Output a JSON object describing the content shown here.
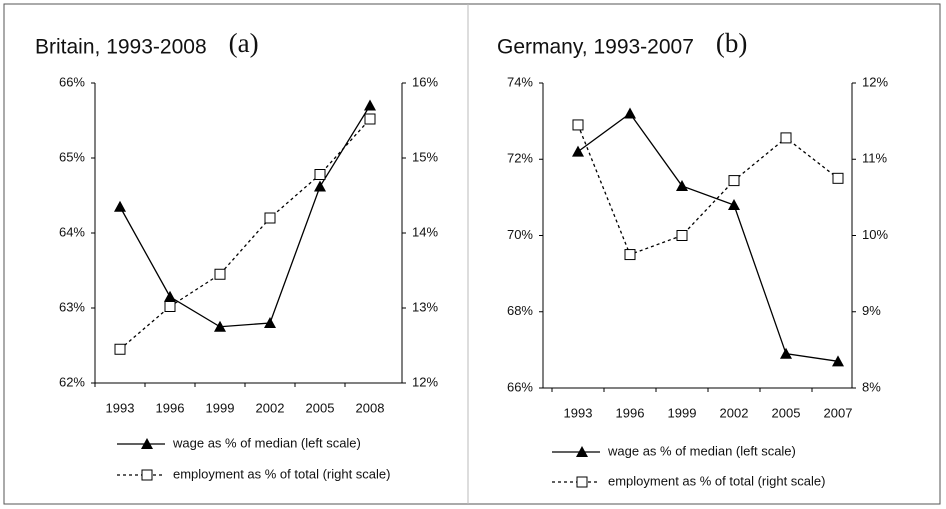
{
  "chart_data": [
    {
      "type": "line",
      "title": "Britain, 1993-2008",
      "panel_label": "(a)",
      "categories": [
        "1993",
        "1996",
        "1999",
        "2002",
        "2005",
        "2008"
      ],
      "series": [
        {
          "name": "wage as % of median (left scale)",
          "color": "#000000",
          "marker": "triangle",
          "dashed": false,
          "values": [
            64.35,
            63.15,
            62.75,
            62.8,
            64.62,
            65.7
          ]
        },
        {
          "name": "employment as % of total (right scale)",
          "color": "#000000",
          "marker": "square",
          "dashed": true,
          "axis": "y2",
          "values": [
            12.45,
            13.02,
            13.45,
            14.2,
            14.78,
            15.52
          ]
        }
      ],
      "ylim": [
        62,
        66
      ],
      "yticks": [
        {
          "value": 62,
          "label": "62%"
        },
        {
          "value": 63,
          "label": "63%"
        },
        {
          "value": 64,
          "label": "64%"
        },
        {
          "value": 65,
          "label": "65%"
        },
        {
          "value": 66,
          "label": "66%"
        }
      ],
      "y2lim": [
        12,
        16
      ],
      "y2ticks": [
        {
          "value": 12,
          "label": "12%"
        },
        {
          "value": 13,
          "label": "13%"
        },
        {
          "value": 14,
          "label": "14%"
        },
        {
          "value": 15,
          "label": "15%"
        },
        {
          "value": 16,
          "label": "16%"
        }
      ],
      "grid": false
    },
    {
      "type": "line",
      "title": "Germany, 1993-2007",
      "panel_label": "(b)",
      "categories": [
        "1993",
        "1996",
        "1999",
        "2002",
        "2005",
        "2007"
      ],
      "series": [
        {
          "name": "wage as % of median (left scale)",
          "color": "#000000",
          "marker": "triangle",
          "dashed": false,
          "values": [
            72.2,
            73.2,
            71.3,
            70.8,
            66.9,
            66.7
          ]
        },
        {
          "name": "employment as % of total (right scale)",
          "color": "#000000",
          "marker": "square",
          "dashed": true,
          "axis": "y2",
          "values": [
            11.45,
            9.75,
            10.0,
            10.72,
            11.28,
            10.75
          ]
        }
      ],
      "ylim": [
        66,
        74
      ],
      "yticks": [
        {
          "value": 66,
          "label": "66%"
        },
        {
          "value": 68,
          "label": "68%"
        },
        {
          "value": 70,
          "label": "70%"
        },
        {
          "value": 72,
          "label": "72%"
        },
        {
          "value": 74,
          "label": "74%"
        }
      ],
      "y2lim": [
        8,
        12
      ],
      "y2ticks": [
        {
          "value": 8,
          "label": "8%"
        },
        {
          "value": 9,
          "label": "9%"
        },
        {
          "value": 10,
          "label": "10%"
        },
        {
          "value": 11,
          "label": "11%"
        },
        {
          "value": 12,
          "label": "12%"
        }
      ],
      "grid": false
    }
  ]
}
